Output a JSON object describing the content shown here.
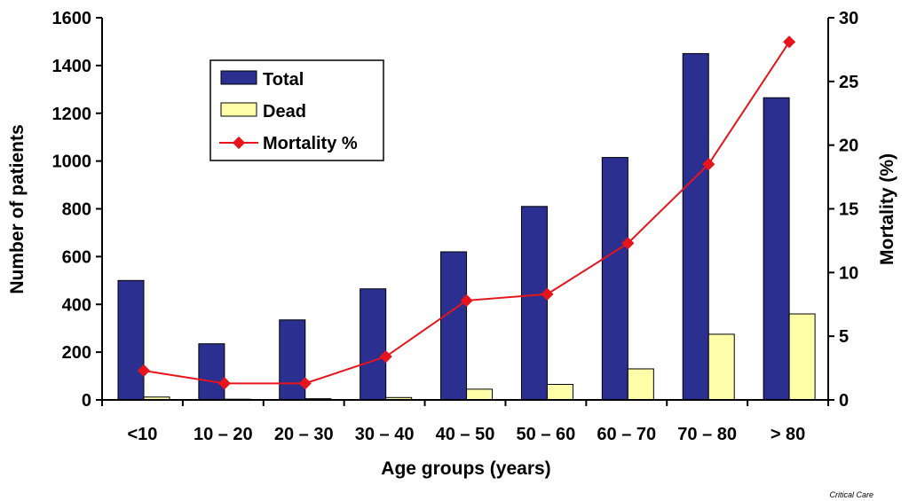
{
  "chart_data": {
    "type": "bar",
    "title": "",
    "xlabel": "Age groups (years)",
    "ylabel": "Number of patients",
    "y2label": "Mortality (%)",
    "categories": [
      "<10",
      "10 – 20",
      "20 – 30",
      "30 – 40",
      "40 – 50",
      "50 – 60",
      "60 – 70",
      "70 – 80",
      "> 80"
    ],
    "ylim": [
      0,
      1600
    ],
    "y2lim": [
      0,
      30
    ],
    "yticks": [
      0,
      200,
      400,
      600,
      800,
      1000,
      1200,
      1400,
      1600
    ],
    "y2ticks": [
      0,
      5,
      10,
      15,
      20,
      25,
      30
    ],
    "series": [
      {
        "name": "Total",
        "type": "bar",
        "axis": "left",
        "color": "#2b2f8f",
        "values": [
          500,
          235,
          335,
          465,
          620,
          810,
          1015,
          1450,
          1265
        ]
      },
      {
        "name": "Dead",
        "type": "bar",
        "axis": "left",
        "color": "#ffffaa",
        "values": [
          12,
          3,
          5,
          10,
          45,
          65,
          130,
          275,
          360
        ]
      },
      {
        "name": "Mortality %",
        "type": "line",
        "axis": "right",
        "color": "#e8141c",
        "values": [
          2.3,
          1.3,
          1.3,
          3.4,
          7.8,
          8.3,
          12.3,
          18.5,
          28.1
        ]
      }
    ],
    "legend": {
      "position": "top-left",
      "items": [
        "Total",
        "Dead",
        "Mortality %"
      ]
    },
    "grid": false
  },
  "source_credit": "Critical Care"
}
